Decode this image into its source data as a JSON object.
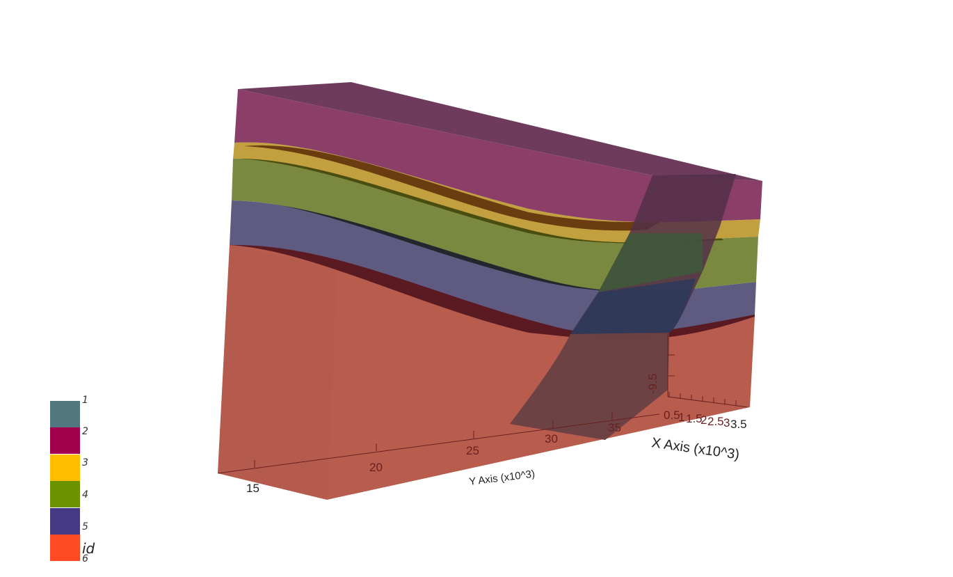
{
  "scene": {
    "y_axis": {
      "title": "Y Axis (x10^3)",
      "tick_labels": [
        "15",
        "20",
        "25",
        "30",
        "35"
      ]
    },
    "x_axis": {
      "title": "X Axis (x10^3)",
      "tick_labels": [
        "0.5",
        "1",
        "1.5",
        "2",
        "2.5",
        "3",
        "3.5"
      ]
    },
    "z_axis": {
      "tick_labels": [
        "-9.5"
      ]
    },
    "layer_colors": {
      "layer_1": "#6f3b5c",
      "layer_2": "#8b3f68",
      "layer_3": "#c3a03f",
      "layer_4": "#7a8840",
      "layer_5": "#5e5a80",
      "layer_6": "#b85c4e"
    }
  },
  "legend": {
    "title": "id",
    "entries": [
      {
        "label": "1",
        "color": "#53777f"
      },
      {
        "label": "2",
        "color": "#a2004f"
      },
      {
        "label": "3",
        "color": "#ffbf00"
      },
      {
        "label": "4",
        "color": "#6b9300"
      },
      {
        "label": "5",
        "color": "#463a85"
      },
      {
        "label": "6",
        "color": "#ff4a24"
      }
    ]
  }
}
